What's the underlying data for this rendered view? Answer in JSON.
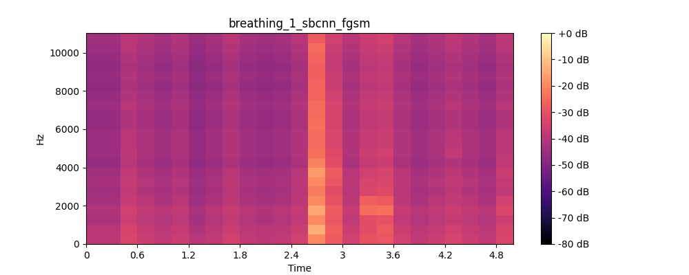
{
  "chart_data": {
    "type": "heatmap",
    "title": "breathing_1_sbcnn_fgsm",
    "x_label": "Time",
    "y_label": "Hz",
    "color": "magma",
    "xlim": [
      0,
      5.0
    ],
    "ylim": [
      0,
      11025
    ],
    "xticks": [
      0,
      0.6,
      1.2,
      1.8,
      2.4,
      3,
      3.6,
      4.2,
      4.8
    ],
    "yticks": [
      0,
      2000,
      4000,
      6000,
      8000,
      10000
    ],
    "time_bins": [
      0,
      0.2,
      0.4,
      0.6,
      0.8,
      1.0,
      1.2,
      1.4,
      1.6,
      1.8,
      2.0,
      2.2,
      2.4,
      2.6,
      2.8,
      3.0,
      3.2,
      3.4,
      3.6,
      3.8,
      4.0,
      4.2,
      4.4,
      4.6,
      4.8,
      5.0
    ],
    "freq_bins": [
      0,
      500,
      1000,
      1500,
      2000,
      2500,
      3000,
      3500,
      4000,
      4500,
      5000,
      5500,
      6000,
      6500,
      7000,
      7500,
      8000,
      8500,
      9000,
      9500,
      10000,
      10500,
      11025
    ],
    "cells": [
      [
        -39,
        -39,
        -33,
        -36,
        -38,
        -36,
        -40,
        -38,
        -35,
        -38,
        -39,
        -38,
        -35,
        -20,
        -28,
        -35,
        -30,
        -29,
        -35,
        -38,
        -36,
        -34,
        -36,
        -38,
        -33
      ],
      [
        -40,
        -40,
        -34,
        -37,
        -39,
        -37,
        -41,
        -39,
        -36,
        -39,
        -40,
        -39,
        -36,
        -14,
        -27,
        -36,
        -31,
        -28,
        -36,
        -39,
        -37,
        -35,
        -37,
        -39,
        -34
      ],
      [
        -42,
        -42,
        -36,
        -39,
        -41,
        -39,
        -43,
        -41,
        -38,
        -41,
        -42,
        -41,
        -38,
        -20,
        -29,
        -38,
        -31,
        -30,
        -38,
        -41,
        -39,
        -37,
        -39,
        -41,
        -36
      ],
      [
        -41,
        -41,
        -35,
        -38,
        -40,
        -38,
        -42,
        -40,
        -37,
        -40,
        -41,
        -40,
        -37,
        -15,
        -28,
        -37,
        -25,
        -24,
        -37,
        -40,
        -38,
        -36,
        -38,
        -40,
        -33
      ],
      [
        -43,
        -43,
        -37,
        -40,
        -42,
        -40,
        -44,
        -42,
        -39,
        -42,
        -43,
        -42,
        -39,
        -20,
        -30,
        -39,
        -27,
        -28,
        -39,
        -42,
        -40,
        -38,
        -40,
        -42,
        -35
      ],
      [
        -44,
        -44,
        -38,
        -41,
        -43,
        -41,
        -45,
        -43,
        -40,
        -43,
        -44,
        -43,
        -40,
        -22,
        -31,
        -40,
        -33,
        -32,
        -40,
        -43,
        -41,
        -39,
        -41,
        -43,
        -38
      ],
      [
        -43,
        -43,
        -37,
        -40,
        -42,
        -40,
        -44,
        -42,
        -39,
        -42,
        -43,
        -42,
        -39,
        -20,
        -29,
        -39,
        -34,
        -33,
        -39,
        -42,
        -40,
        -38,
        -40,
        -42,
        -37
      ],
      [
        -44,
        -44,
        -38,
        -41,
        -43,
        -41,
        -45,
        -43,
        -40,
        -43,
        -44,
        -43,
        -40,
        -17,
        -28,
        -40,
        -35,
        -34,
        -40,
        -43,
        -41,
        -39,
        -41,
        -43,
        -36
      ],
      [
        -46,
        -46,
        -40,
        -43,
        -45,
        -43,
        -47,
        -45,
        -42,
        -45,
        -46,
        -45,
        -42,
        -21,
        -31,
        -42,
        -37,
        -36,
        -42,
        -45,
        -43,
        -41,
        -43,
        -45,
        -38
      ],
      [
        -45,
        -45,
        -39,
        -42,
        -44,
        -42,
        -46,
        -44,
        -41,
        -44,
        -45,
        -44,
        -41,
        -24,
        -32,
        -41,
        -36,
        -35,
        -41,
        -44,
        -42,
        -38,
        -42,
        -44,
        -39
      ],
      [
        -45,
        -45,
        -40,
        -42,
        -44,
        -42,
        -46,
        -44,
        -41,
        -44,
        -45,
        -44,
        -41,
        -25,
        -33,
        -41,
        -37,
        -36,
        -41,
        -44,
        -42,
        -39,
        -42,
        -44,
        -40
      ],
      [
        -45,
        -45,
        -40,
        -42,
        -44,
        -42,
        -46,
        -44,
        -41,
        -44,
        -45,
        -44,
        -41,
        -25,
        -33,
        -41,
        -37,
        -36,
        -41,
        -44,
        -42,
        -40,
        -42,
        -44,
        -40
      ],
      [
        -46,
        -46,
        -41,
        -43,
        -45,
        -43,
        -47,
        -45,
        -42,
        -45,
        -46,
        -45,
        -42,
        -24,
        -34,
        -42,
        -38,
        -37,
        -42,
        -45,
        -43,
        -41,
        -43,
        -45,
        -41
      ],
      [
        -46,
        -46,
        -41,
        -43,
        -45,
        -43,
        -47,
        -45,
        -42,
        -45,
        -46,
        -45,
        -42,
        -25,
        -34,
        -42,
        -38,
        -37,
        -42,
        -45,
        -43,
        -41,
        -43,
        -45,
        -41
      ],
      [
        -45,
        -45,
        -40,
        -42,
        -44,
        -42,
        -46,
        -44,
        -41,
        -44,
        -45,
        -44,
        -41,
        -25,
        -34,
        -41,
        -37,
        -36,
        -41,
        -44,
        -42,
        -40,
        -42,
        -44,
        -40
      ],
      [
        -46,
        -46,
        -41,
        -43,
        -45,
        -43,
        -47,
        -45,
        -42,
        -45,
        -46,
        -45,
        -42,
        -26,
        -35,
        -42,
        -38,
        -37,
        -42,
        -45,
        -43,
        -41,
        -43,
        -45,
        -41
      ],
      [
        -47,
        -47,
        -42,
        -44,
        -46,
        -44,
        -48,
        -46,
        -43,
        -46,
        -47,
        -46,
        -43,
        -26,
        -36,
        -43,
        -39,
        -38,
        -43,
        -46,
        -44,
        -42,
        -44,
        -46,
        -42
      ],
      [
        -46,
        -46,
        -41,
        -43,
        -45,
        -43,
        -47,
        -45,
        -42,
        -45,
        -46,
        -45,
        -42,
        -27,
        -36,
        -42,
        -38,
        -37,
        -42,
        -45,
        -43,
        -41,
        -43,
        -45,
        -41
      ],
      [
        -47,
        -47,
        -42,
        -44,
        -46,
        -44,
        -48,
        -46,
        -43,
        -46,
        -47,
        -46,
        -43,
        -27,
        -37,
        -43,
        -39,
        -38,
        -43,
        -46,
        -44,
        -42,
        -44,
        -46,
        -42
      ],
      [
        -46,
        -46,
        -41,
        -43,
        -45,
        -43,
        -47,
        -45,
        -42,
        -45,
        -46,
        -45,
        -42,
        -26,
        -37,
        -42,
        -38,
        -37,
        -42,
        -45,
        -43,
        -41,
        -43,
        -45,
        -41
      ],
      [
        -45,
        -45,
        -40,
        -42,
        -44,
        -42,
        -46,
        -44,
        -41,
        -44,
        -45,
        -44,
        -41,
        -25,
        -36,
        -41,
        -37,
        -36,
        -41,
        -44,
        -42,
        -40,
        -42,
        -44,
        -40
      ],
      [
        -44,
        -44,
        -40,
        -41,
        -43,
        -41,
        -45,
        -43,
        -40,
        -43,
        -44,
        -43,
        -40,
        -28,
        -35,
        -40,
        -36,
        -35,
        -40,
        -43,
        -41,
        -39,
        -41,
        -43,
        -39
      ]
    ],
    "colorbar_range": [
      -80,
      0
    ],
    "colorbar_ticks": [
      {
        "value": 0,
        "label": "+0 dB"
      },
      {
        "value": -10,
        "label": "-10 dB"
      },
      {
        "value": -20,
        "label": "-20 dB"
      },
      {
        "value": -30,
        "label": "-30 dB"
      },
      {
        "value": -40,
        "label": "-40 dB"
      },
      {
        "value": -50,
        "label": "-50 dB"
      },
      {
        "value": -60,
        "label": "-60 dB"
      },
      {
        "value": -70,
        "label": "-70 dB"
      },
      {
        "value": -80,
        "label": "-80 dB"
      }
    ]
  }
}
